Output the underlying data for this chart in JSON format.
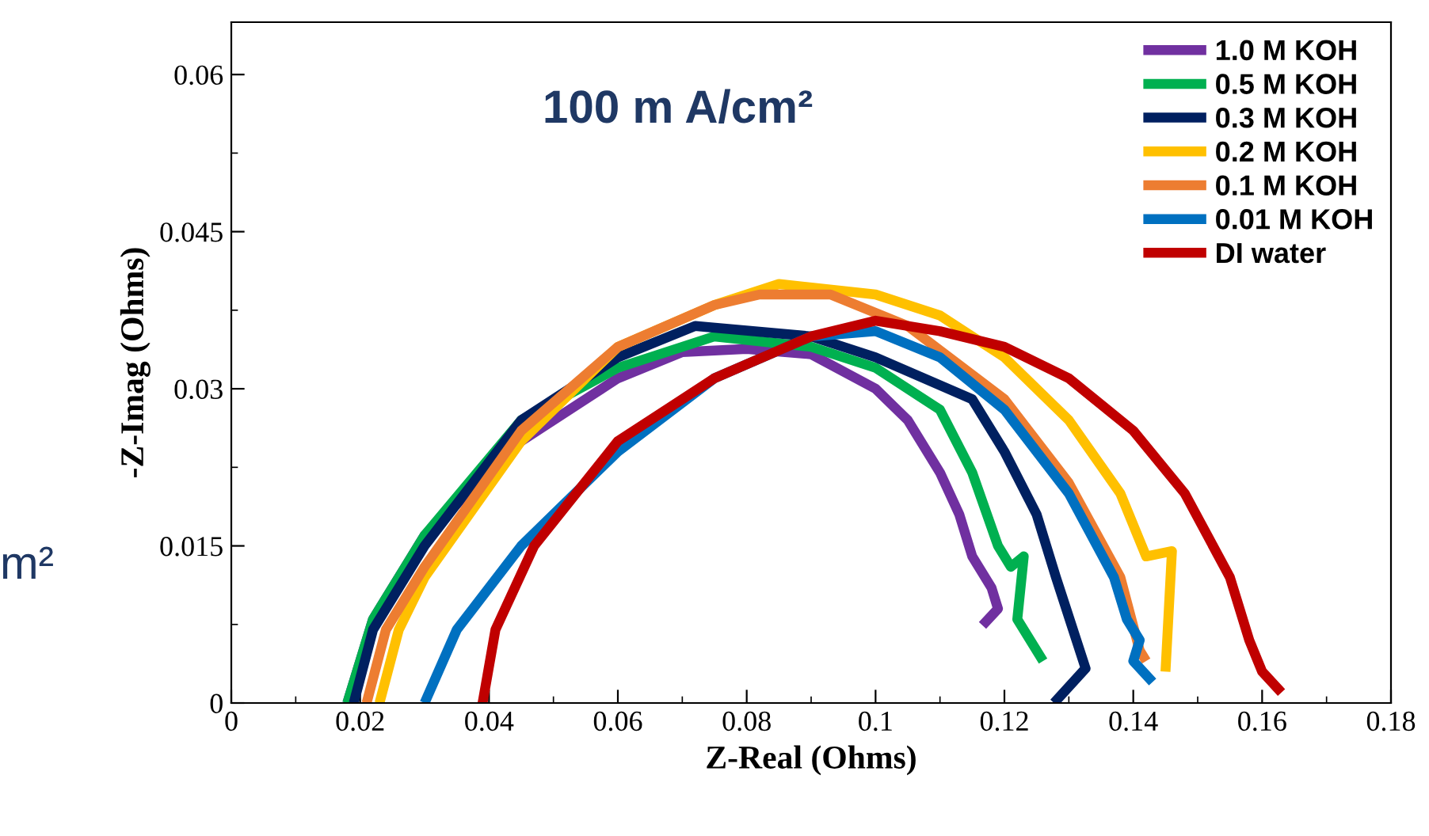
{
  "chart_data": {
    "type": "line",
    "title": "100 m A/cm²",
    "xlabel": "Z-Real (Ohms)",
    "ylabel": "-Z-Imag (Ohms)",
    "annotations": [
      "m²"
    ],
    "xlim": [
      0,
      0.18
    ],
    "ylim": [
      0,
      0.065
    ],
    "xticks": [
      0,
      0.02,
      0.04,
      0.06,
      0.08,
      0.1,
      0.12,
      0.14,
      0.16,
      0.18
    ],
    "yticks": [
      0,
      0.015,
      0.03,
      0.045,
      0.06
    ],
    "grid": false,
    "legend": "top right",
    "marker": "none",
    "line_style": "solid",
    "series": [
      {
        "name": "1.0 M KOH",
        "color": "#7030a0",
        "x": [
          0.018,
          0.022,
          0.03,
          0.045,
          0.06,
          0.07,
          0.08,
          0.09,
          0.1,
          0.105,
          0.11,
          0.113,
          0.115,
          0.118,
          0.119,
          0.1166
        ],
        "values": [
          0,
          0.008,
          0.016,
          0.025,
          0.031,
          0.0335,
          0.0338,
          0.0333,
          0.03,
          0.027,
          0.022,
          0.018,
          0.014,
          0.011,
          0.009,
          0.0074
        ]
      },
      {
        "name": "0.5 M KOH",
        "color": "#00b050",
        "x": [
          0.018,
          0.022,
          0.03,
          0.045,
          0.06,
          0.075,
          0.09,
          0.1,
          0.11,
          0.115,
          0.119,
          0.121,
          0.123,
          0.122,
          0.126
        ],
        "values": [
          0,
          0.008,
          0.016,
          0.027,
          0.032,
          0.035,
          0.034,
          0.032,
          0.028,
          0.022,
          0.015,
          0.013,
          0.014,
          0.008,
          0.004
        ]
      },
      {
        "name": "0.3 M KOH",
        "color": "#002060",
        "x": [
          0.019,
          0.022,
          0.03,
          0.045,
          0.06,
          0.072,
          0.09,
          0.1,
          0.115,
          0.12,
          0.125,
          0.128,
          0.1326,
          0.1277
        ],
        "values": [
          0,
          0.007,
          0.015,
          0.027,
          0.033,
          0.036,
          0.035,
          0.033,
          0.029,
          0.024,
          0.018,
          0.012,
          0.0033,
          0
        ]
      },
      {
        "name": "0.2 M KOH",
        "color": "#ffc000",
        "x": [
          0.023,
          0.026,
          0.03,
          0.045,
          0.06,
          0.075,
          0.085,
          0.1,
          0.11,
          0.12,
          0.13,
          0.138,
          0.142,
          0.146,
          0.145
        ],
        "values": [
          0,
          0.007,
          0.012,
          0.025,
          0.034,
          0.038,
          0.04,
          0.039,
          0.037,
          0.033,
          0.027,
          0.02,
          0.014,
          0.0145,
          0.003
        ]
      },
      {
        "name": "0.1 M KOH",
        "color": "#ed7d31",
        "x": [
          0.021,
          0.024,
          0.03,
          0.045,
          0.06,
          0.075,
          0.082,
          0.093,
          0.105,
          0.12,
          0.13,
          0.138,
          0.141,
          0.142
        ],
        "values": [
          0,
          0.007,
          0.013,
          0.026,
          0.034,
          0.038,
          0.039,
          0.039,
          0.036,
          0.029,
          0.021,
          0.012,
          0.005,
          0.004
        ]
      },
      {
        "name": "0.01 M KOH",
        "color": "#0070c0",
        "x": [
          0.03,
          0.035,
          0.045,
          0.06,
          0.075,
          0.09,
          0.1,
          0.11,
          0.12,
          0.13,
          0.137,
          0.139,
          0.141,
          0.14,
          0.143
        ],
        "values": [
          0,
          0.007,
          0.015,
          0.024,
          0.031,
          0.035,
          0.0355,
          0.033,
          0.028,
          0.02,
          0.012,
          0.008,
          0.006,
          0.004,
          0.002
        ]
      },
      {
        "name": "DI water",
        "color": "#c00000",
        "x": [
          0.039,
          0.041,
          0.047,
          0.06,
          0.075,
          0.09,
          0.1,
          0.11,
          0.12,
          0.13,
          0.14,
          0.148,
          0.155,
          0.158,
          0.16,
          0.163
        ],
        "values": [
          0,
          0.007,
          0.015,
          0.025,
          0.031,
          0.035,
          0.0365,
          0.0355,
          0.034,
          0.031,
          0.026,
          0.02,
          0.012,
          0.006,
          0.003,
          0.001
        ]
      }
    ]
  }
}
